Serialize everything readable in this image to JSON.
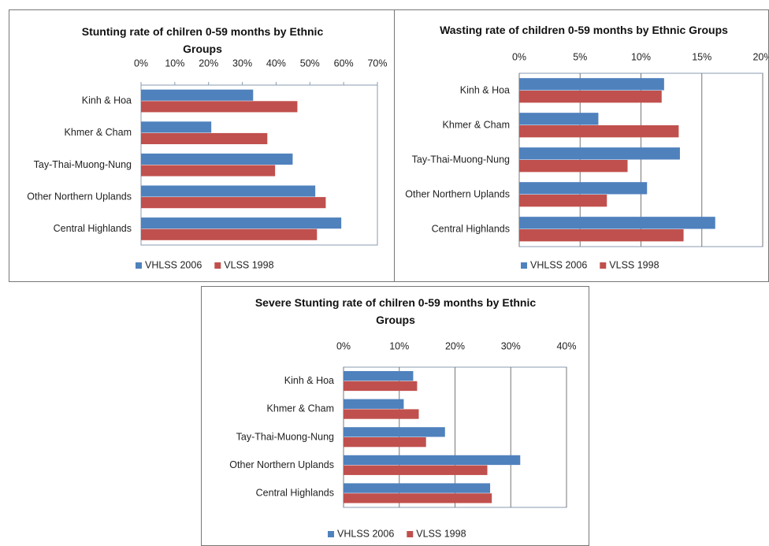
{
  "chart_data": [
    {
      "type": "bar",
      "orientation": "horizontal",
      "title": "Stunting rate of chilren 0-59 months by Ethnic Groups",
      "categories": [
        "Kinh & Hoa",
        "Khmer & Cham",
        "Tay-Thai-Muong-Nung",
        "Other Northern Uplands",
        "Central Highlands"
      ],
      "series": [
        {
          "name": "VHLSS 2006",
          "color": "#4f81bd",
          "values": [
            33.2,
            20.8,
            44.9,
            51.6,
            59.3
          ]
        },
        {
          "name": "VLSS 1998",
          "color": "#c0504d",
          "values": [
            46.3,
            37.4,
            39.7,
            54.7,
            52.1
          ]
        }
      ],
      "xlim": [
        0,
        70
      ],
      "xticks": [
        {
          "value": 0,
          "label": "0%"
        },
        {
          "value": 10,
          "label": "10%"
        },
        {
          "value": 20,
          "label": "20%"
        },
        {
          "value": 30,
          "label": "30%"
        },
        {
          "value": 40,
          "label": "40%"
        },
        {
          "value": 50,
          "label": "50%"
        },
        {
          "value": 60,
          "label": "60%"
        },
        {
          "value": 70,
          "label": "70%"
        }
      ],
      "grid": false,
      "legend": "bottom"
    },
    {
      "type": "bar",
      "orientation": "horizontal",
      "title": "Wasting rate of children 0-59 months by Ethnic Groups",
      "categories": [
        "Kinh & Hoa",
        "Khmer & Cham",
        "Tay-Thai-Muong-Nung",
        "Other Northern Uplands",
        "Central Highlands"
      ],
      "series": [
        {
          "name": "VHLSS 2006",
          "color": "#4f81bd",
          "values": [
            11.9,
            6.5,
            13.2,
            10.5,
            16.1
          ]
        },
        {
          "name": "VLSS 1998",
          "color": "#c0504d",
          "values": [
            11.7,
            13.1,
            8.9,
            7.2,
            13.5
          ]
        }
      ],
      "xlim": [
        0,
        20
      ],
      "xticks": [
        {
          "value": 0,
          "label": "0%"
        },
        {
          "value": 5,
          "label": "5%"
        },
        {
          "value": 10,
          "label": "10%"
        },
        {
          "value": 15,
          "label": "15%"
        },
        {
          "value": 20,
          "label": "20%"
        }
      ],
      "grid": true,
      "legend": "bottom"
    },
    {
      "type": "bar",
      "orientation": "horizontal",
      "title": "Severe Stunting rate  of chilren 0-59 months by Ethnic Groups",
      "categories": [
        "Kinh & Hoa",
        "Khmer & Cham",
        "Tay-Thai-Muong-Nung",
        "Other Northern Uplands",
        "Central Highlands"
      ],
      "series": [
        {
          "name": "VHLSS 2006",
          "color": "#4f81bd",
          "values": [
            12.5,
            10.8,
            18.2,
            31.7,
            26.3
          ]
        },
        {
          "name": "VLSS 1998",
          "color": "#c0504d",
          "values": [
            13.2,
            13.5,
            14.8,
            25.8,
            26.6
          ]
        }
      ],
      "xlim": [
        0,
        40
      ],
      "xticks": [
        {
          "value": 0,
          "label": "0%"
        },
        {
          "value": 10,
          "label": "10%"
        },
        {
          "value": 20,
          "label": "20%"
        },
        {
          "value": 30,
          "label": "30%"
        },
        {
          "value": 40,
          "label": "40%"
        }
      ],
      "grid": true,
      "legend": "bottom"
    }
  ]
}
